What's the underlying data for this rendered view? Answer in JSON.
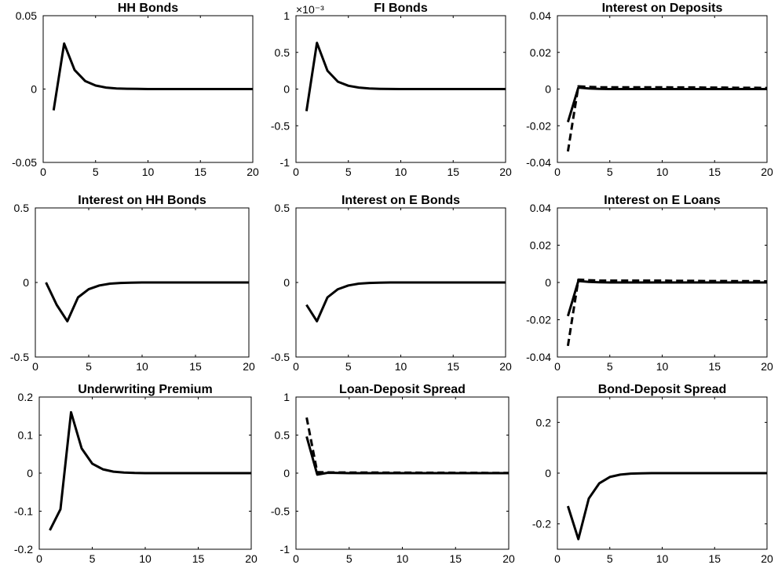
{
  "chart_data": [
    {
      "type": "line",
      "title": "HH Bonds",
      "xlim": [
        0,
        20
      ],
      "ylim": [
        -0.05,
        0.05
      ],
      "xticks": [
        "0",
        "5",
        "10",
        "15",
        "20"
      ],
      "yticks": [
        "-0.05",
        "0",
        "0.05"
      ],
      "exponent": "",
      "series": [
        {
          "style": "solid",
          "x": [
            1,
            2,
            3,
            4,
            5,
            6,
            7,
            8,
            9,
            10,
            11,
            12,
            13,
            14,
            15,
            16,
            17,
            18,
            19,
            20
          ],
          "y": [
            -0.0145,
            0.031,
            0.013,
            0.0055,
            0.0024,
            0.001,
            0.0004,
            0.0002,
            0.0001,
            0,
            0,
            0,
            0,
            0,
            0,
            0,
            0,
            0,
            0,
            0
          ]
        }
      ]
    },
    {
      "type": "line",
      "title": "FI Bonds",
      "xlim": [
        0,
        20
      ],
      "ylim": [
        -1,
        1
      ],
      "xticks": [
        "0",
        "5",
        "10",
        "15",
        "20"
      ],
      "yticks": [
        "-1",
        "-0.5",
        "0",
        "0.5",
        "1"
      ],
      "exponent": "×10⁻³",
      "series": [
        {
          "style": "solid",
          "x": [
            1,
            2,
            3,
            4,
            5,
            6,
            7,
            8,
            9,
            10,
            11,
            12,
            13,
            14,
            15,
            16,
            17,
            18,
            19,
            20
          ],
          "y": [
            -0.3,
            0.63,
            0.25,
            0.1,
            0.045,
            0.02,
            0.008,
            0.003,
            0.001,
            0,
            0,
            0,
            0,
            0,
            0,
            0,
            0,
            0,
            0,
            0
          ]
        }
      ]
    },
    {
      "type": "line",
      "title": "Interest on Deposits",
      "xlim": [
        0,
        20
      ],
      "ylim": [
        -0.04,
        0.04
      ],
      "xticks": [
        "0",
        "5",
        "10",
        "15",
        "20"
      ],
      "yticks": [
        "-0.04",
        "-0.02",
        "0",
        "0.02",
        "0.04"
      ],
      "exponent": "",
      "series": [
        {
          "style": "dashed",
          "x": [
            1,
            2,
            3,
            4,
            5,
            6,
            7,
            8,
            9,
            10,
            11,
            12,
            13,
            14,
            15,
            16,
            17,
            18,
            19,
            20
          ],
          "y": [
            -0.034,
            0.0015,
            0.0012,
            0.001,
            0.001,
            0.001,
            0.001,
            0.001,
            0.001,
            0.001,
            0.0009,
            0.0009,
            0.0009,
            0.0008,
            0.0008,
            0.0008,
            0.0007,
            0.0007,
            0.0007,
            0.0006
          ]
        },
        {
          "style": "solid",
          "x": [
            1,
            2,
            3,
            4,
            5,
            6,
            7,
            8,
            9,
            10,
            11,
            12,
            13,
            14,
            15,
            16,
            17,
            18,
            19,
            20
          ],
          "y": [
            -0.018,
            0.0008,
            0.0003,
            0.0001,
            0,
            0,
            0,
            0,
            0,
            0,
            0,
            0,
            0,
            0,
            0,
            0,
            0,
            0,
            0,
            0
          ]
        }
      ]
    },
    {
      "type": "line",
      "title": "Interest on HH Bonds",
      "xlim": [
        0,
        20
      ],
      "ylim": [
        -0.5,
        0.5
      ],
      "xticks": [
        "0",
        "5",
        "10",
        "15",
        "20"
      ],
      "yticks": [
        "-0.5",
        "0",
        "0.5"
      ],
      "exponent": "",
      "series": [
        {
          "style": "solid",
          "x": [
            1,
            2,
            3,
            4,
            5,
            6,
            7,
            8,
            9,
            10,
            11,
            12,
            13,
            14,
            15,
            16,
            17,
            18,
            19,
            20
          ],
          "y": [
            0,
            -0.15,
            -0.26,
            -0.1,
            -0.045,
            -0.02,
            -0.008,
            -0.003,
            -0.001,
            0,
            0,
            0,
            0,
            0,
            0,
            0,
            0,
            0,
            0,
            0
          ]
        }
      ]
    },
    {
      "type": "line",
      "title": "Interest on E Bonds",
      "xlim": [
        0,
        20
      ],
      "ylim": [
        -0.5,
        0.5
      ],
      "xticks": [
        "0",
        "5",
        "10",
        "15",
        "20"
      ],
      "yticks": [
        "-0.5",
        "0",
        "0.5"
      ],
      "exponent": "",
      "series": [
        {
          "style": "solid",
          "x": [
            1,
            2,
            3,
            4,
            5,
            6,
            7,
            8,
            9,
            10,
            11,
            12,
            13,
            14,
            15,
            16,
            17,
            18,
            19,
            20
          ],
          "y": [
            -0.15,
            -0.26,
            -0.1,
            -0.045,
            -0.02,
            -0.008,
            -0.003,
            -0.001,
            0,
            0,
            0,
            0,
            0,
            0,
            0,
            0,
            0,
            0,
            0,
            0
          ]
        }
      ]
    },
    {
      "type": "line",
      "title": "Interest on E Loans",
      "xlim": [
        0,
        20
      ],
      "ylim": [
        -0.04,
        0.04
      ],
      "xticks": [
        "0",
        "5",
        "10",
        "15",
        "20"
      ],
      "yticks": [
        "-0.04",
        "-0.02",
        "0",
        "0.02",
        "0.04"
      ],
      "exponent": "",
      "series": [
        {
          "style": "dashed",
          "x": [
            1,
            2,
            3,
            4,
            5,
            6,
            7,
            8,
            9,
            10,
            11,
            12,
            13,
            14,
            15,
            16,
            17,
            18,
            19,
            20
          ],
          "y": [
            -0.034,
            0.0015,
            0.0012,
            0.001,
            0.001,
            0.001,
            0.001,
            0.001,
            0.001,
            0.001,
            0.0009,
            0.0009,
            0.0009,
            0.0008,
            0.0008,
            0.0008,
            0.0007,
            0.0007,
            0.0007,
            0.0006
          ]
        },
        {
          "style": "solid",
          "x": [
            1,
            2,
            3,
            4,
            5,
            6,
            7,
            8,
            9,
            10,
            11,
            12,
            13,
            14,
            15,
            16,
            17,
            18,
            19,
            20
          ],
          "y": [
            -0.018,
            0.0008,
            0.0003,
            0.0001,
            0,
            0,
            0,
            0,
            0,
            0,
            0,
            0,
            0,
            0,
            0,
            0,
            0,
            0,
            0,
            0
          ]
        }
      ]
    },
    {
      "type": "line",
      "title": "Underwriting Premium",
      "xlim": [
        0,
        20
      ],
      "ylim": [
        -0.2,
        0.2
      ],
      "xticks": [
        "0",
        "5",
        "10",
        "15",
        "20"
      ],
      "yticks": [
        "-0.2",
        "-0.1",
        "0",
        "0.1",
        "0.2"
      ],
      "exponent": "",
      "series": [
        {
          "style": "solid",
          "x": [
            1,
            2,
            3,
            4,
            5,
            6,
            7,
            8,
            9,
            10,
            11,
            12,
            13,
            14,
            15,
            16,
            17,
            18,
            19,
            20
          ],
          "y": [
            -0.15,
            -0.095,
            0.16,
            0.065,
            0.025,
            0.01,
            0.004,
            0.0015,
            0.0005,
            0,
            0,
            0,
            0,
            0,
            0,
            0,
            0,
            0,
            0,
            0
          ]
        }
      ]
    },
    {
      "type": "line",
      "title": "Loan-Deposit Spread",
      "xlim": [
        0,
        20
      ],
      "ylim": [
        -1,
        1
      ],
      "xticks": [
        "0",
        "5",
        "10",
        "15",
        "20"
      ],
      "yticks": [
        "-1",
        "-0.5",
        "0",
        "0.5",
        "1"
      ],
      "exponent": "",
      "series": [
        {
          "style": "dashed",
          "x": [
            1,
            2,
            3,
            4,
            5,
            6,
            7,
            8,
            9,
            10,
            11,
            12,
            13,
            14,
            15,
            16,
            17,
            18,
            19,
            20
          ],
          "y": [
            0.73,
            0.012,
            0.01,
            0.009,
            0.008,
            0.008,
            0.007,
            0.007,
            0.006,
            0.006,
            0.006,
            0.005,
            0.005,
            0.005,
            0.004,
            0.004,
            0.004,
            0.003,
            0.003,
            0.003
          ]
        },
        {
          "style": "solid",
          "x": [
            1,
            2,
            3,
            4,
            5,
            6,
            7,
            8,
            9,
            10,
            11,
            12,
            13,
            14,
            15,
            16,
            17,
            18,
            19,
            20
          ],
          "y": [
            0.48,
            -0.02,
            0.005,
            0.002,
            0,
            0,
            0,
            0,
            0,
            0,
            0,
            0,
            0,
            0,
            0,
            0,
            0,
            0,
            0,
            0
          ]
        }
      ]
    },
    {
      "type": "line",
      "title": "Bond-Deposit Spread",
      "xlim": [
        0,
        20
      ],
      "ylim": [
        -0.3,
        0.3
      ],
      "xticks": [
        "0",
        "5",
        "10",
        "15",
        "20"
      ],
      "yticks": [
        "-0.2",
        "0",
        "0.2"
      ],
      "ytickvals": [
        -0.2,
        0,
        0.2
      ],
      "exponent": "",
      "series": [
        {
          "style": "solid",
          "x": [
            1,
            2,
            3,
            4,
            5,
            6,
            7,
            8,
            9,
            10,
            11,
            12,
            13,
            14,
            15,
            16,
            17,
            18,
            19,
            20
          ],
          "y": [
            -0.13,
            -0.26,
            -0.1,
            -0.04,
            -0.015,
            -0.006,
            -0.002,
            -0.001,
            0,
            0,
            0,
            0,
            0,
            0,
            0,
            0,
            0,
            0,
            0,
            0
          ]
        }
      ]
    }
  ]
}
